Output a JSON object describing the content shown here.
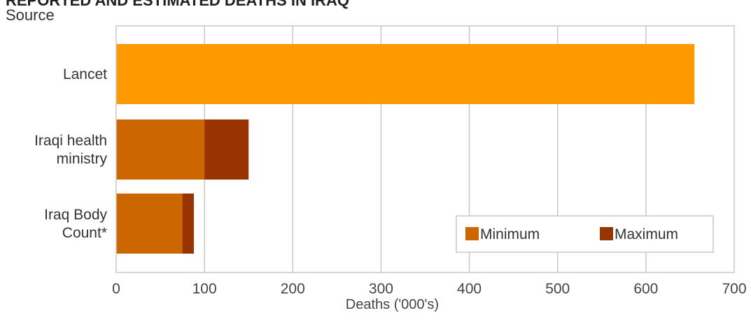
{
  "header": {
    "title": "REPORTED AND ESTIMATED DEATHS IN IRAQ",
    "source_label": "Source"
  },
  "footnote": "",
  "colors": {
    "minimum": "#cc6600",
    "maximum": "#993300",
    "single": "#ff9900",
    "grid": "#c8c8c8",
    "frame": "#c8c8c8"
  },
  "chart_data": {
    "type": "bar",
    "orientation": "horizontal",
    "stacked": true,
    "categories": [
      {
        "lines": [
          "Lancet"
        ]
      },
      {
        "lines": [
          "Iraqi health",
          "ministry"
        ]
      },
      {
        "lines": [
          "Iraq Body",
          "Count*"
        ]
      }
    ],
    "bars": [
      {
        "single": 655
      },
      {
        "minimum": 100,
        "maximum": 150
      },
      {
        "minimum": 75,
        "maximum": 88
      }
    ],
    "series": [
      {
        "name": "Minimum"
      },
      {
        "name": "Maximum"
      }
    ],
    "xlabel": "Deaths ('000's)",
    "xlim": [
      0,
      700
    ],
    "xticks": [
      0,
      100,
      200,
      300,
      400,
      500,
      600,
      700
    ],
    "grid": true,
    "legend": "bottom-right"
  }
}
